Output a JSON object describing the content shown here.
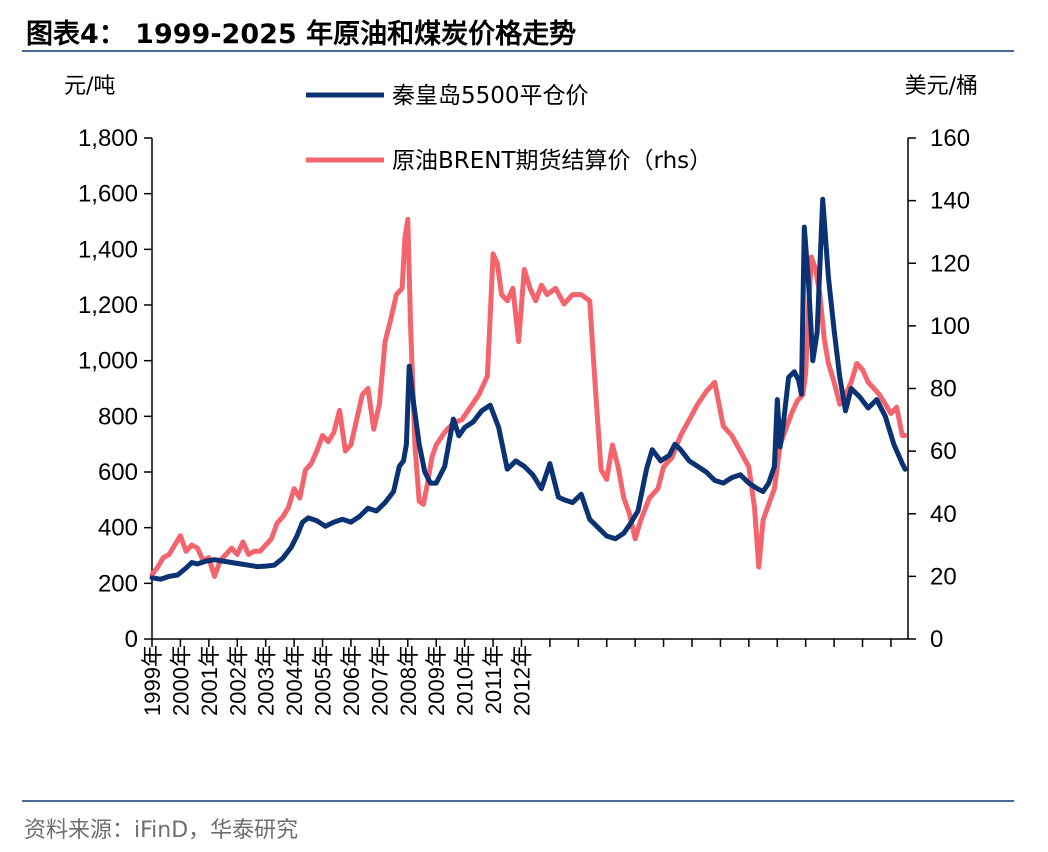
{
  "title": "图表4：  1999-2025 年原油和煤炭价格走势",
  "source": "资料来源：iFinD，华泰研究",
  "colors": {
    "coal": "#0b3273",
    "oil": "#f4646c",
    "rule": "#4a6a9a"
  },
  "chart_data": {
    "type": "line",
    "y_left_unit": "元/吨",
    "y_right_unit": "美元/桶",
    "y_left_lim": [
      0,
      1800
    ],
    "y_right_lim": [
      0,
      160
    ],
    "y_left_ticks": [
      "0",
      "200",
      "400",
      "600",
      "800",
      "1,000",
      "1,200",
      "1,400",
      "1,600",
      "1,800"
    ],
    "y_right_ticks": [
      "0",
      "20",
      "40",
      "60",
      "80",
      "100",
      "120",
      "140",
      "160"
    ],
    "x_range": [
      1999.0,
      2025.6
    ],
    "x_tick_labels": [
      "1999年",
      "2000年",
      "2001年",
      "2002年",
      "2003年",
      "2004年",
      "2005年",
      "2006年",
      "2007年",
      "2008年",
      "2009年",
      "2010年",
      "2011年",
      "2012年"
    ],
    "legend": "top",
    "grid": false,
    "series": [
      {
        "name": "秦皇岛5500平仓价",
        "axis": "left",
        "x": [
          1999.0,
          1999.3,
          1999.6,
          1999.9,
          2000.2,
          2000.4,
          2000.6,
          2000.9,
          2001.2,
          2001.5,
          2001.8,
          2002.1,
          2002.4,
          2002.7,
          2003.0,
          2003.3,
          2003.6,
          2003.9,
          2004.1,
          2004.3,
          2004.5,
          2004.8,
          2005.1,
          2005.4,
          2005.7,
          2006.0,
          2006.3,
          2006.6,
          2006.9,
          2007.2,
          2007.5,
          2007.7,
          2007.85,
          2007.95,
          2008.05,
          2008.2,
          2008.4,
          2008.6,
          2008.8,
          2009.0,
          2009.3,
          2009.6,
          2009.8,
          2010.0,
          2010.3,
          2010.6,
          2010.9,
          2011.2,
          2011.5,
          2011.8,
          2012.1,
          2012.4,
          2012.7,
          2013.0,
          2013.3,
          2013.5,
          2013.8,
          2014.1,
          2014.4,
          2014.7,
          2015.0,
          2015.3,
          2015.6,
          2015.8,
          2016.1,
          2016.4,
          2016.6,
          2016.9,
          2017.2,
          2017.4,
          2017.6,
          2017.9,
          2018.2,
          2018.5,
          2018.8,
          2019.1,
          2019.4,
          2019.7,
          2020.0,
          2020.3,
          2020.5,
          2020.7,
          2020.9,
          2021.0,
          2021.1,
          2021.2,
          2021.4,
          2021.5,
          2021.6,
          2021.75,
          2021.85,
          2021.95,
          2022.1,
          2022.25,
          2022.4,
          2022.6,
          2022.8,
          2023.0,
          2023.2,
          2023.4,
          2023.6,
          2023.9,
          2024.2,
          2024.5,
          2024.8,
          2025.1,
          2025.4,
          2025.5
        ],
        "values": [
          220,
          215,
          225,
          230,
          255,
          275,
          270,
          280,
          285,
          280,
          275,
          270,
          265,
          260,
          262,
          265,
          290,
          330,
          370,
          420,
          435,
          425,
          405,
          420,
          430,
          420,
          440,
          470,
          460,
          490,
          530,
          620,
          640,
          700,
          980,
          850,
          700,
          600,
          560,
          560,
          620,
          790,
          730,
          760,
          780,
          820,
          840,
          760,
          610,
          640,
          620,
          590,
          540,
          630,
          510,
          500,
          490,
          520,
          430,
          400,
          370,
          360,
          380,
          410,
          460,
          610,
          680,
          640,
          660,
          700,
          680,
          640,
          620,
          600,
          570,
          560,
          580,
          590,
          560,
          540,
          530,
          560,
          620,
          860,
          690,
          760,
          940,
          950,
          960,
          930,
          880,
          1480,
          1280,
          1000,
          1100,
          1580,
          1300,
          1110,
          940,
          820,
          900,
          870,
          830,
          860,
          800,
          700,
          630,
          610
        ],
        "line_width": 5
      },
      {
        "name": "原油BRENT期货结算价（rhs）",
        "axis": "right",
        "x": [
          1999.0,
          1999.2,
          1999.4,
          1999.6,
          1999.8,
          2000.0,
          2000.2,
          2000.4,
          2000.6,
          2000.8,
          2001.0,
          2001.2,
          2001.4,
          2001.6,
          2001.8,
          2002.0,
          2002.2,
          2002.4,
          2002.6,
          2002.8,
          2003.0,
          2003.2,
          2003.4,
          2003.6,
          2003.8,
          2004.0,
          2004.2,
          2004.4,
          2004.6,
          2004.8,
          2005.0,
          2005.2,
          2005.4,
          2005.6,
          2005.8,
          2006.0,
          2006.2,
          2006.4,
          2006.6,
          2006.8,
          2007.0,
          2007.2,
          2007.4,
          2007.6,
          2007.8,
          2007.9,
          2008.0,
          2008.1,
          2008.25,
          2008.4,
          2008.55,
          2008.7,
          2008.85,
          2009.0,
          2009.3,
          2009.6,
          2009.9,
          2010.2,
          2010.5,
          2010.8,
          2011.0,
          2011.15,
          2011.3,
          2011.5,
          2011.7,
          2011.9,
          2012.1,
          2012.3,
          2012.5,
          2012.7,
          2012.9,
          2013.2,
          2013.5,
          2013.8,
          2014.1,
          2014.4,
          2014.6,
          2014.8,
          2015.0,
          2015.2,
          2015.4,
          2015.6,
          2015.8,
          2016.0,
          2016.2,
          2016.5,
          2016.8,
          2017.0,
          2017.3,
          2017.6,
          2017.9,
          2018.2,
          2018.5,
          2018.8,
          2019.1,
          2019.4,
          2019.7,
          2020.0,
          2020.2,
          2020.35,
          2020.5,
          2020.7,
          2020.9,
          2021.1,
          2021.3,
          2021.5,
          2021.7,
          2021.9,
          2022.0,
          2022.1,
          2022.2,
          2022.35,
          2022.5,
          2022.65,
          2022.8,
          2023.0,
          2023.2,
          2023.4,
          2023.6,
          2023.8,
          2024.0,
          2024.2,
          2024.4,
          2024.6,
          2024.8,
          2025.0,
          2025.2,
          2025.4,
          2025.5
        ],
        "values": [
          20.5,
          23,
          26,
          27,
          30,
          33,
          28,
          30,
          29,
          25,
          26,
          20,
          25,
          27,
          29,
          27,
          31,
          27,
          28,
          28,
          30,
          32,
          37,
          39,
          42,
          48,
          45,
          54,
          56,
          60,
          65,
          63,
          66,
          73,
          60,
          62,
          70,
          78,
          80,
          67,
          75,
          95,
          102,
          110,
          112,
          128,
          134,
          100,
          62,
          44,
          43,
          50,
          58,
          62,
          66,
          69,
          70,
          74,
          78,
          84,
          123,
          120,
          110,
          108,
          112,
          95,
          118,
          112,
          108,
          113,
          110,
          112,
          107,
          110,
          110,
          108,
          80,
          54,
          51,
          62,
          55,
          45,
          40,
          32,
          38,
          45,
          48,
          55,
          58,
          65,
          70,
          75,
          79,
          82,
          68,
          65,
          60,
          55,
          42,
          23,
          38,
          43,
          48,
          62,
          67,
          72,
          76,
          78,
          85,
          105,
          122,
          118,
          110,
          96,
          88,
          82,
          75,
          78,
          82,
          88,
          86,
          82,
          80,
          78,
          75,
          72,
          74,
          65,
          65
        ],
        "line_width": 5
      }
    ]
  }
}
